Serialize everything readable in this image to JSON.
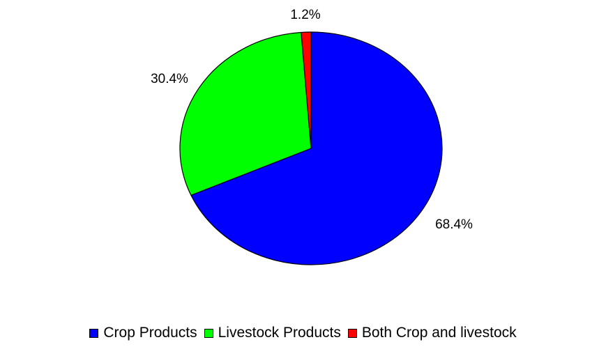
{
  "chart_data": {
    "type": "pie",
    "title": "",
    "categories": [
      "Crop Products",
      "Livestock Products",
      "Both Crop and livestock"
    ],
    "values": [
      68.4,
      30.4,
      1.2
    ],
    "value_labels": [
      "68.4%",
      "30.4%",
      "1.2%"
    ],
    "colors": [
      "#0000ff",
      "#00ff00",
      "#ff0000"
    ],
    "start_angle": "12 o'clock",
    "direction": "clockwise",
    "legend_position": "bottom",
    "units": "%"
  }
}
